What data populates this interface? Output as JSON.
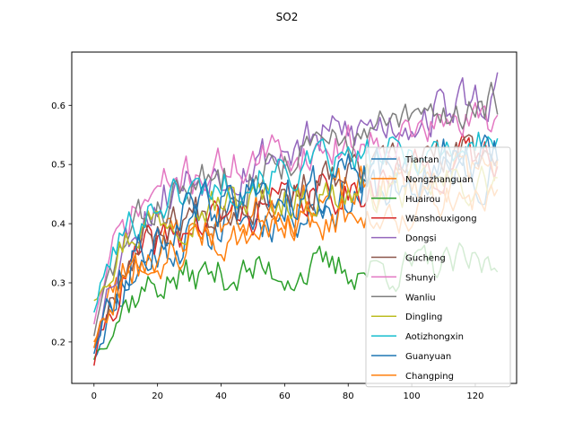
{
  "chart_data": {
    "type": "line",
    "title": "SO2",
    "xlabel": "",
    "ylabel": "",
    "xlim": [
      -7,
      133
    ],
    "ylim": [
      0.13,
      0.69
    ],
    "xticks": [
      0,
      20,
      40,
      60,
      80,
      100,
      120
    ],
    "yticks": [
      0.2,
      0.3,
      0.4,
      0.5,
      0.6
    ],
    "grid": false,
    "legend_position": "lower-right",
    "series": [
      {
        "name": "Tiantan",
        "color": "#1f77b4",
        "start": 0.17,
        "ramp": 0.18,
        "end": 0.5,
        "amp": 0.035,
        "seed": 11
      },
      {
        "name": "Nongzhanguan",
        "color": "#ff7f0e",
        "start": 0.2,
        "ramp": 0.16,
        "end": 0.5,
        "amp": 0.035,
        "seed": 23
      },
      {
        "name": "Huairou",
        "color": "#2ca02c",
        "start": 0.17,
        "ramp": 0.14,
        "end": 0.33,
        "amp": 0.028,
        "seed": 37
      },
      {
        "name": "Wanshouxigong",
        "color": "#d62728",
        "start": 0.16,
        "ramp": 0.2,
        "end": 0.52,
        "amp": 0.03,
        "seed": 41
      },
      {
        "name": "Dongsi",
        "color": "#9467bd",
        "start": 0.19,
        "ramp": 0.25,
        "end": 0.62,
        "amp": 0.035,
        "seed": 53
      },
      {
        "name": "Gucheng",
        "color": "#8c564b",
        "start": 0.19,
        "ramp": 0.2,
        "end": 0.53,
        "amp": 0.03,
        "seed": 67
      },
      {
        "name": "Shunyi",
        "color": "#e377c2",
        "start": 0.23,
        "ramp": 0.23,
        "end": 0.58,
        "amp": 0.03,
        "seed": 71
      },
      {
        "name": "Wanliu",
        "color": "#7f7f7f",
        "start": 0.21,
        "ramp": 0.21,
        "end": 0.61,
        "amp": 0.03,
        "seed": 83
      },
      {
        "name": "Dingling",
        "color": "#bcbd22",
        "start": 0.27,
        "ramp": 0.15,
        "end": 0.47,
        "amp": 0.03,
        "seed": 97
      },
      {
        "name": "Aotizhongxin",
        "color": "#17becf",
        "start": 0.25,
        "ramp": 0.19,
        "end": 0.54,
        "amp": 0.028,
        "seed": 101
      },
      {
        "name": "Guanyuan",
        "color": "#1f77b4",
        "start": 0.18,
        "ramp": 0.21,
        "end": 0.52,
        "amp": 0.035,
        "seed": 113
      },
      {
        "name": "Changping",
        "color": "#ff7f0e",
        "start": 0.19,
        "ramp": 0.16,
        "end": 0.45,
        "amp": 0.03,
        "seed": 127
      }
    ]
  }
}
